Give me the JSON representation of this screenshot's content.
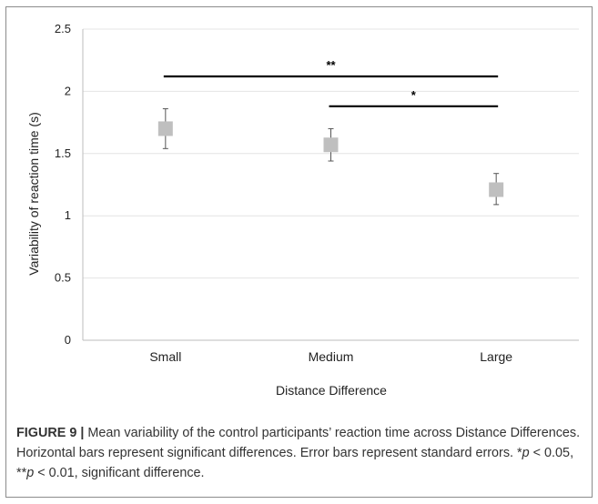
{
  "chart_data": {
    "type": "scatter",
    "categories": [
      "Small",
      "Medium",
      "Large"
    ],
    "values": [
      1.7,
      1.57,
      1.21
    ],
    "error_upper": [
      1.86,
      1.7,
      1.34
    ],
    "error_lower": [
      1.54,
      1.44,
      1.09
    ],
    "xlabel": "Distance Difference",
    "ylabel": "Variability of reaction time (s)",
    "ylim": [
      0,
      2.5
    ],
    "yticks": [
      0,
      0.5,
      1,
      1.5,
      2,
      2.5
    ],
    "ytick_labels": [
      "0",
      "0.5",
      "1",
      "1.5",
      "2",
      "2.5"
    ],
    "grid": true,
    "marker": "square",
    "marker_color": "#bfbfbf",
    "significance_bars": [
      {
        "from": "Small",
        "to": "Large",
        "y": 2.12,
        "label": "**"
      },
      {
        "from": "Medium",
        "to": "Large",
        "y": 1.88,
        "label": "*"
      }
    ]
  },
  "caption": {
    "label": "FIGURE 9 |",
    "text_1": " Mean variability of the control participants’ reaction time across Distance Differences. Horizontal bars represent significant differences. Error bars represent standard errors. *",
    "p1": "p",
    "text_2": " < 0.05, **",
    "p2": "p",
    "text_3": " < 0.01, significant difference."
  }
}
